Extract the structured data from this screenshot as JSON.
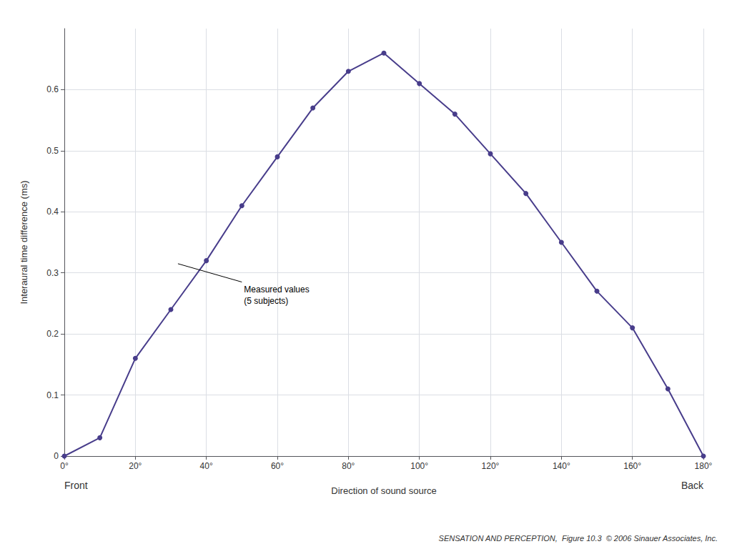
{
  "chart_data": {
    "type": "line",
    "x": [
      0,
      10,
      20,
      30,
      40,
      50,
      60,
      70,
      80,
      90,
      100,
      110,
      120,
      130,
      140,
      150,
      160,
      170,
      180
    ],
    "values": [
      0.0,
      0.03,
      0.16,
      0.24,
      0.32,
      0.41,
      0.49,
      0.57,
      0.63,
      0.66,
      0.61,
      0.56,
      0.495,
      0.43,
      0.35,
      0.27,
      0.21,
      0.11,
      0.0
    ],
    "color": "#483D8B",
    "marker": "circle",
    "ylabel": "Interaural time difference (ms)",
    "xlabel": "Direction of sound source",
    "xlabel_left": "Front",
    "xlabel_right": "Back",
    "annotation": {
      "text": "Measured values\n(5 subjects)",
      "xy": [
        32,
        0.315
      ],
      "xytext": [
        50,
        0.285
      ]
    },
    "footnote": "SENSATION AND PERCEPTION,  Figure 10.3  © 2006 Sinauer Associates, Inc.",
    "xlim": [
      0,
      180
    ],
    "ylim": [
      0,
      0.7
    ],
    "xticks": [
      {
        "value": 0,
        "label": "0°"
      },
      {
        "value": 20,
        "label": "20°"
      },
      {
        "value": 40,
        "label": "40°"
      },
      {
        "value": 60,
        "label": "60°"
      },
      {
        "value": 80,
        "label": "80°"
      },
      {
        "value": 100,
        "label": "100°"
      },
      {
        "value": 120,
        "label": "120°"
      },
      {
        "value": 140,
        "label": "140°"
      },
      {
        "value": 160,
        "label": "160°"
      },
      {
        "value": 180,
        "label": "180°"
      }
    ],
    "yticks": [
      0,
      0.1,
      0.2,
      0.3,
      0.4,
      0.5,
      0.6
    ],
    "grid": true
  }
}
